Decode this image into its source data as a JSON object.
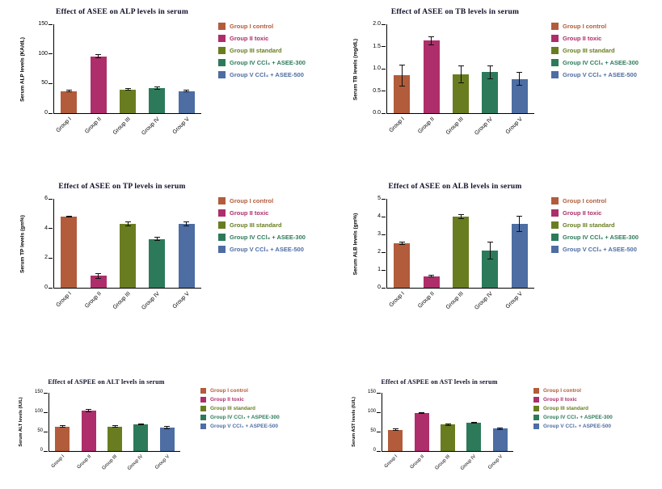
{
  "colors": {
    "groups": [
      "#b25c3b",
      "#ad2e6a",
      "#697d20",
      "#2c7a5a",
      "#4d6da3"
    ],
    "axis": "#000000",
    "title": "#10102a",
    "error_bar": "#111111"
  },
  "chart_data": [
    {
      "type": "bar",
      "size": "large",
      "title": "Effect of ASEE on ALP levels in serum",
      "ylabel": "Serum ALP levels (KA/dL)",
      "xlabel": "",
      "categories": [
        "Group I",
        "Group II",
        "Group III",
        "Group IV",
        "Group V"
      ],
      "values": [
        37,
        96,
        40,
        42,
        37
      ],
      "errors": [
        2,
        3,
        2,
        3,
        2
      ],
      "yticks": [
        "0",
        "50",
        "100",
        "150"
      ],
      "ylim": [
        0,
        150
      ],
      "grid": false,
      "legend_position": "right",
      "legend": [
        "Group I control",
        "Group II toxic",
        "Group III standard",
        "Group IV CCl₄ + ASEE-300",
        "Group V CCl₄ + ASEE-500"
      ]
    },
    {
      "type": "bar",
      "size": "large",
      "title": "Effect of ASEE on TB levels in serum",
      "ylabel": "Serum TB levels (mg/dL)",
      "xlabel": "",
      "categories": [
        "Group I",
        "Group II",
        "Group III",
        "Group IV",
        "Group V"
      ],
      "values": [
        0.85,
        1.63,
        0.88,
        0.92,
        0.77
      ],
      "errors": [
        0.25,
        0.1,
        0.2,
        0.15,
        0.15
      ],
      "yticks": [
        "0.0",
        "0.5",
        "1.0",
        "1.5",
        "2.0"
      ],
      "ylim": [
        0,
        2.0
      ],
      "grid": false,
      "legend_position": "right",
      "legend": [
        "Group I control",
        "Group II toxic",
        "Group III standard",
        "Group IV CCl₄ + ASEE-300",
        "Group V CCl₄ + ASEE-500"
      ]
    },
    {
      "type": "bar",
      "size": "large",
      "title": "Effect of ASEE on TP levels in serum",
      "ylabel": "Serum TP levels (gm%)",
      "xlabel": "",
      "categories": [
        "Group I",
        "Group II",
        "Group III",
        "Group IV",
        "Group V"
      ],
      "values": [
        4.8,
        0.8,
        4.3,
        3.3,
        4.3
      ],
      "errors": [
        0.08,
        0.18,
        0.15,
        0.12,
        0.15
      ],
      "yticks": [
        "0",
        "2",
        "4",
        "6"
      ],
      "ylim": [
        0,
        6
      ],
      "grid": false,
      "legend_position": "right",
      "legend": [
        "Group I control",
        "Group II toxic",
        "Group III standard",
        "Group IV CCl₄ + ASEE-300",
        "Group V CCl₄ + ASEE-500"
      ]
    },
    {
      "type": "bar",
      "size": "large",
      "title": "Effect of ASEE on ALB levels in serum",
      "ylabel": "Serum ALB levels (gm%)",
      "xlabel": "",
      "categories": [
        "Group I",
        "Group II",
        "Group III",
        "Group IV",
        "Group V"
      ],
      "values": [
        2.5,
        0.65,
        4.0,
        2.1,
        3.6
      ],
      "errors": [
        0.1,
        0.08,
        0.15,
        0.5,
        0.45
      ],
      "yticks": [
        "0",
        "1",
        "2",
        "3",
        "4",
        "5"
      ],
      "ylim": [
        0,
        5
      ],
      "grid": false,
      "legend_position": "right",
      "legend": [
        "Group I control",
        "Group II toxic",
        "Group III standard",
        "Group IV CCl₄ + ASEE-300",
        "Group V CCl₄ + ASEE-500"
      ]
    },
    {
      "type": "bar",
      "size": "small",
      "title": "Effect of ASPEE on ALT levels in serum",
      "ylabel": "Serum ALT levels (IU/L)",
      "xlabel": "",
      "categories": [
        "Group I",
        "Group II",
        "Group III",
        "Group IV",
        "Group V"
      ],
      "values": [
        63,
        105,
        63,
        68,
        61
      ],
      "errors": [
        3,
        4,
        3,
        2,
        4
      ],
      "yticks": [
        "0",
        "50",
        "100",
        "150"
      ],
      "ylim": [
        0,
        150
      ],
      "grid": false,
      "legend_position": "right",
      "legend": [
        "Group I control",
        "Group II toxic",
        "Group III standard",
        "Group IV CCl₄ + ASPEE-300",
        "Group V CCl₄ + ASPEE-500"
      ]
    },
    {
      "type": "bar",
      "size": "small",
      "title": "Effect of ASPEE on AST levels in serum",
      "ylabel": "Serum AST levels (IU/L)",
      "xlabel": "",
      "categories": [
        "Group I",
        "Group II",
        "Group III",
        "Group IV",
        "Group V"
      ],
      "values": [
        55,
        98,
        68,
        72,
        58
      ],
      "errors": [
        3,
        3,
        3,
        2,
        3
      ],
      "yticks": [
        "0",
        "50",
        "100",
        "150"
      ],
      "ylim": [
        0,
        150
      ],
      "grid": false,
      "legend_position": "right",
      "legend": [
        "Group I control",
        "Group II toxic",
        "Group III standard",
        "Group IV CCl₄ + ASPEE-300",
        "Group V CCl₄ + ASPEE-500"
      ]
    }
  ]
}
